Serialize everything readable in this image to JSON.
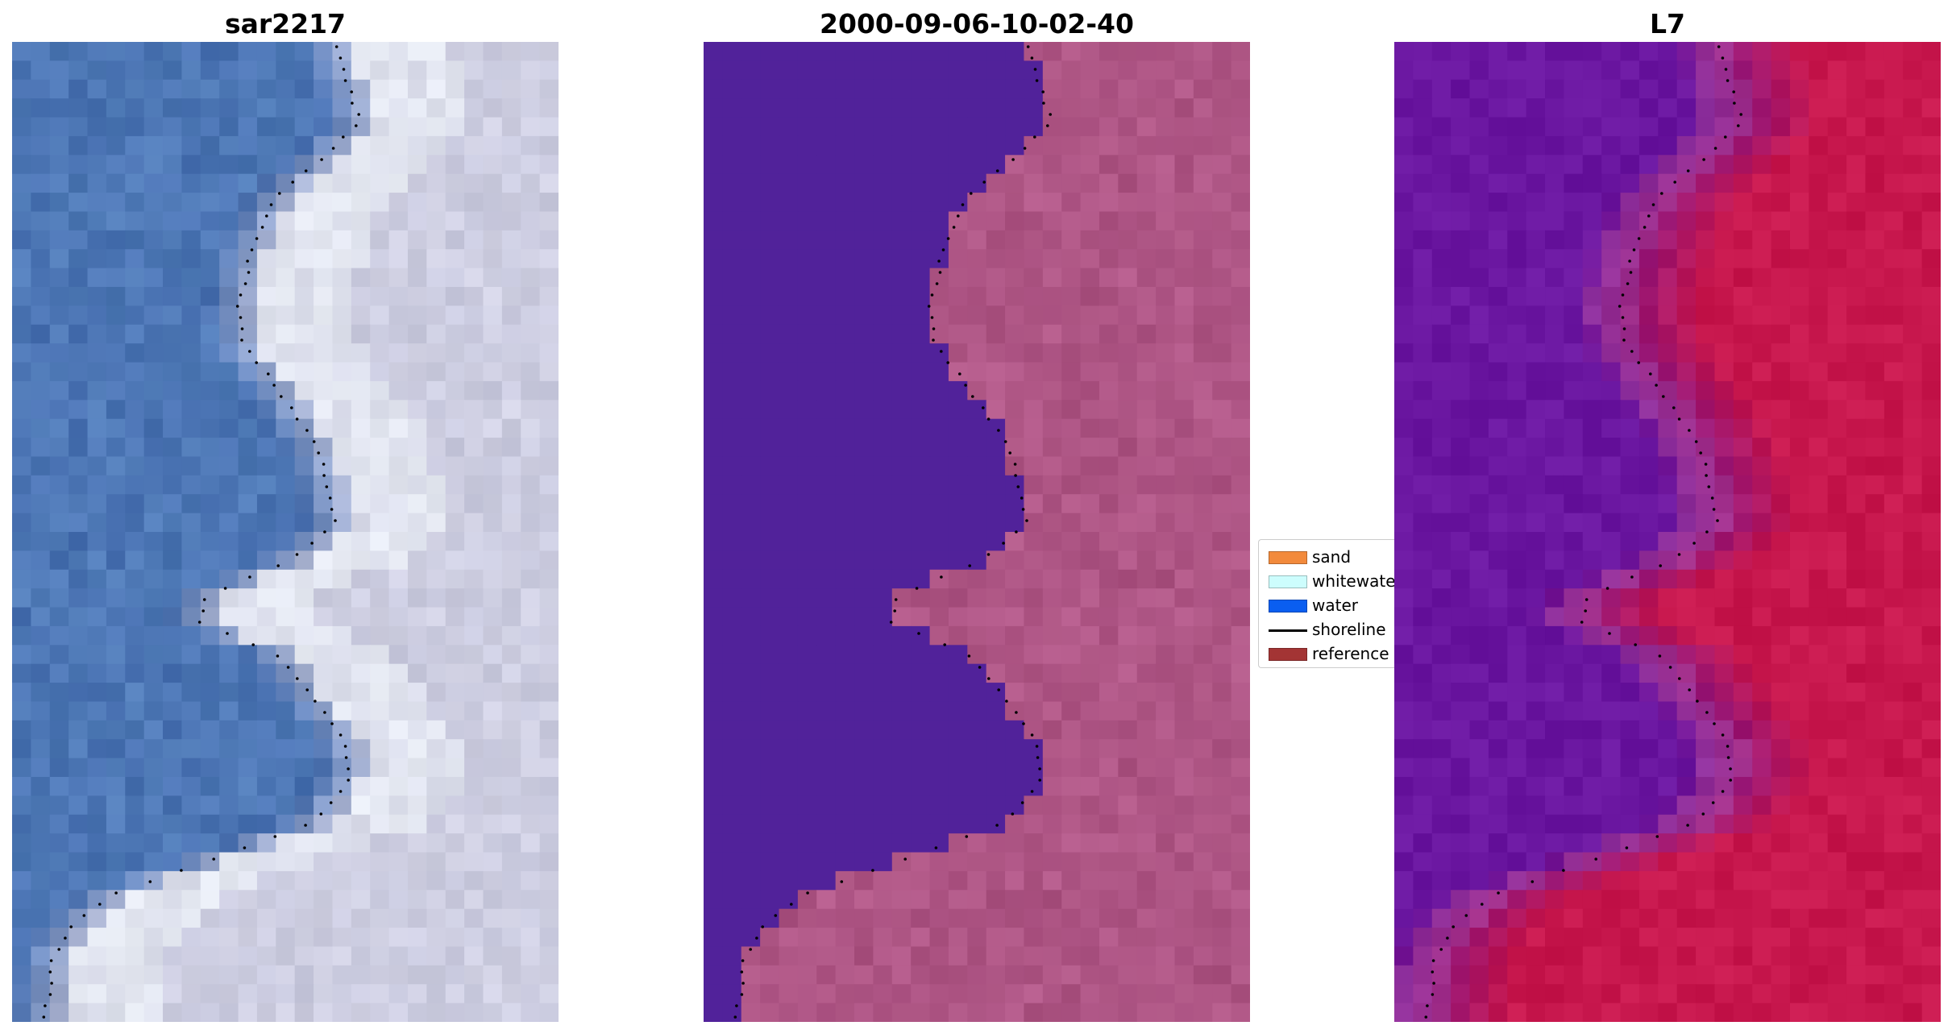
{
  "panels": [
    {
      "title": "sar2217",
      "kind": "rgb"
    },
    {
      "title": "2000-09-06-10-02-40",
      "kind": "classified"
    },
    {
      "title": "L7",
      "kind": "index"
    }
  ],
  "legend": {
    "items": [
      {
        "label": "sand",
        "color": "#f28a3c",
        "type": "patch"
      },
      {
        "label": "whitewater",
        "color": "#cdfdfd",
        "type": "patch"
      },
      {
        "label": "water",
        "color": "#0a5ef0",
        "type": "patch"
      },
      {
        "label": "shoreline",
        "color": "#000000",
        "type": "line"
      },
      {
        "label": "reference",
        "color": "#a33434",
        "type": "patch"
      }
    ]
  },
  "colors": {
    "sea_rgb": "#4a72b3",
    "surf_rgb": "#e8ecf4",
    "land_rgb": "#c8c9de",
    "water_class": "#51229a",
    "land_class": "#a9517f",
    "water_index": "#6a16a0",
    "land_index": "#c7174d"
  }
}
